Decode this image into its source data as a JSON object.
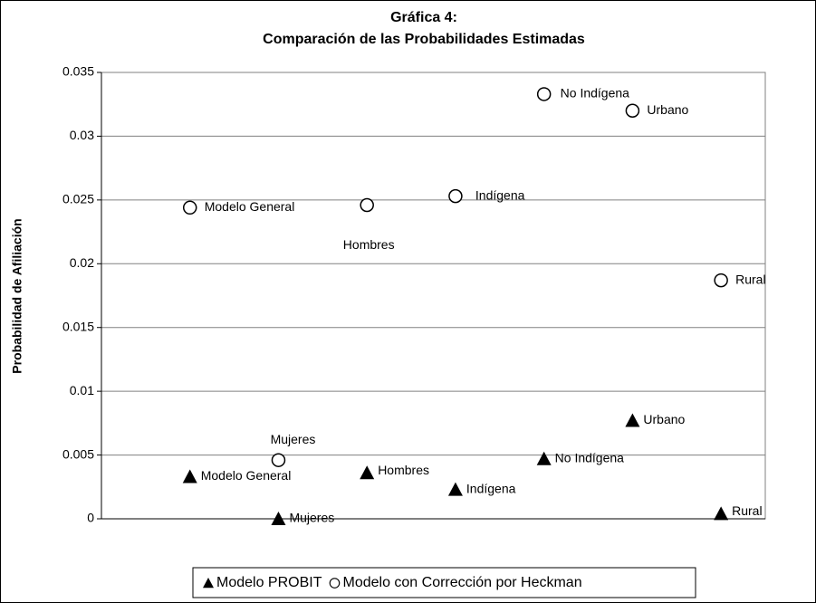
{
  "chart_data": {
    "type": "scatter",
    "title": [
      "Gráfica 4:",
      "Comparación de las Probabilidades Estimadas"
    ],
    "ylabel": "Probabilidad de Afiliación",
    "x": [
      1,
      2,
      3,
      4,
      5,
      6,
      7
    ],
    "xlim": [
      0,
      7.5
    ],
    "ylim": [
      0,
      0.035
    ],
    "yticks": [
      0,
      0.005,
      0.01,
      0.015,
      0.02,
      0.025,
      0.03,
      0.035
    ],
    "grid": true,
    "legend": "bottom",
    "series": [
      {
        "name": "Modelo PROBIT",
        "marker": "triangle",
        "color": "#000000",
        "values": [
          0.0033,
          0,
          0.0036,
          0.0023,
          0.0047,
          0.0077,
          0.0004
        ],
        "point_labels": [
          "Modelo General",
          "Mujeres",
          "Hombres",
          "Indígena",
          "No Indígena",
          "Urbano",
          "Rural"
        ]
      },
      {
        "name": "Modelo con Corrección por Heckman",
        "marker": "circle",
        "color": "#000000",
        "values": [
          0.0244,
          0.0046,
          0.0246,
          0.0253,
          0.0333,
          0.032,
          0.0187
        ],
        "point_labels": [
          "Modelo General",
          "Mujeres",
          "Hombres",
          "Indígena",
          "No Indígena",
          "Urbano",
          "Rural"
        ]
      }
    ]
  }
}
